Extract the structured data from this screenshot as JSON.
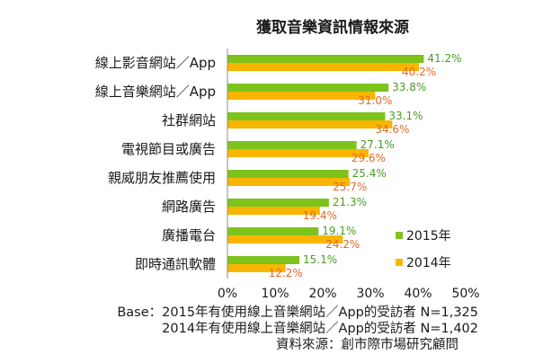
{
  "chart_data": {
    "type": "bar",
    "orientation": "horizontal",
    "title": "獲取音樂資訊情報來源",
    "categories": [
      "線上影音網站／App",
      "線上音樂網站／App",
      "社群網站",
      "電視節目或廣告",
      "親威朋友推薦使用",
      "網路廣告",
      "廣播電台",
      "即時通訊軟體"
    ],
    "series": [
      {
        "name": "2015年",
        "values": [
          41.2,
          33.8,
          33.1,
          27.1,
          25.4,
          21.3,
          19.1,
          15.1
        ],
        "data_labels": [
          "41.2%",
          "33.8%",
          "33.1%",
          "27.1%",
          "25.4%",
          "21.3%",
          "19.1%",
          "15.1%"
        ],
        "color": "#7dc31c",
        "label_color": "#4a9c23"
      },
      {
        "name": "2014年",
        "values": [
          40.2,
          31.0,
          34.6,
          29.6,
          25.7,
          19.4,
          24.2,
          12.2
        ],
        "data_labels": [
          "40.2%",
          "31.0%",
          "34.6%",
          "29.6%",
          "25.7%",
          "19.4%",
          "24.2%",
          "12.2%"
        ],
        "color": "#f8b600",
        "label_color": "#e3692a"
      }
    ],
    "x_ticks": [
      "0%",
      "10%",
      "20%",
      "30%",
      "40%",
      "50%"
    ],
    "xlim": [
      0,
      50
    ],
    "grid": false,
    "legend_position": "bottom-right"
  },
  "footer": {
    "base_line_1": "Base：2015年有使用線上音樂網站／App的受訪者 N=1,325",
    "base_line_2": "2014年有使用線上音樂網站／App的受訪者 N=1,402",
    "source": "資料來源：創市際市場研究顧問"
  }
}
